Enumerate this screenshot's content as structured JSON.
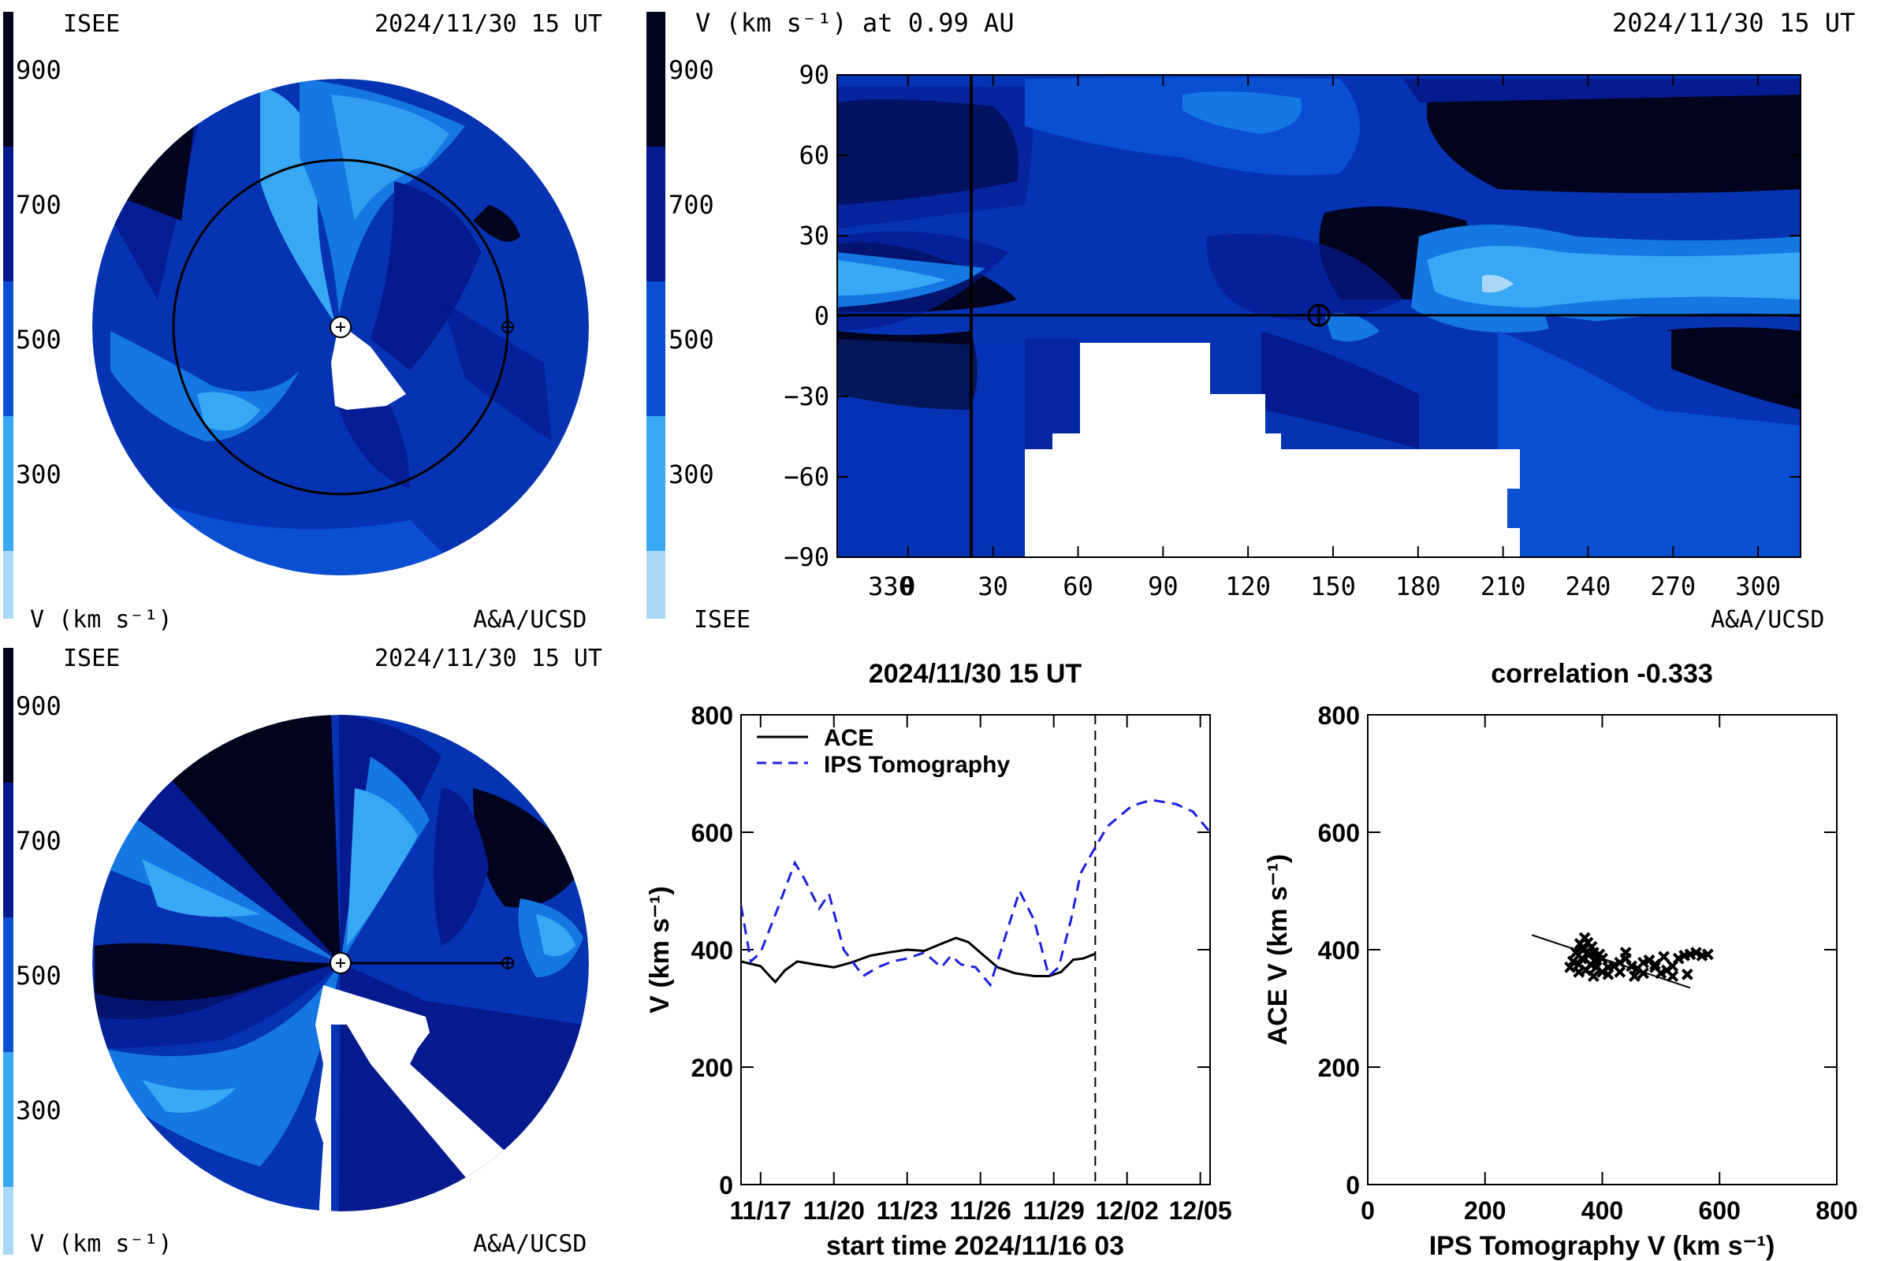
{
  "colors": {
    "levels": [
      "#a8d8f8",
      "#38a8f4",
      "#1477e4",
      "#0a4ed2",
      "#0533b4",
      "#051a8e",
      "#030a52",
      "#02041e"
    ],
    "white_gap": "#ffffff",
    "ace_line": "#000000",
    "ips_line": "#1f1fe0",
    "text": "#000000"
  },
  "colorbar": {
    "ticks": [
      "900",
      "700",
      "500",
      "300"
    ],
    "unit_label": "V (km s⁻¹)"
  },
  "panel_ecliptic": {
    "org": "ISEE",
    "timestamp": "2024/11/30 15 UT",
    "unit_label": "V (km s⁻¹)",
    "credit": "A&A/UCSD"
  },
  "panel_meridional": {
    "org": "ISEE",
    "timestamp": "2024/11/30 15 UT",
    "unit_label": "V (km s⁻¹)",
    "credit": "A&A/UCSD"
  },
  "panel_map": {
    "title": "V (km s⁻¹) at 0.99 AU",
    "timestamp": "2024/11/30 15 UT",
    "org": "ISEE",
    "credit": "A&A/UCSD",
    "x_ticks": [
      "330",
      "0",
      "30",
      "60",
      "90",
      "120",
      "150",
      "180",
      "210",
      "240",
      "270",
      "300"
    ],
    "y_ticks": [
      "90",
      "60",
      "30",
      "0",
      "−30",
      "−60",
      "−90"
    ]
  },
  "panel_timeseries": {
    "title": "2024/11/30 15 UT",
    "xlabel": "start time 2024/11/16 03",
    "ylabel": "V (km s⁻¹)",
    "legend": [
      "ACE",
      "IPS Tomography"
    ],
    "x_ticks": [
      "11/17",
      "11/20",
      "11/23",
      "11/26",
      "11/29",
      "12/02",
      "12/05"
    ],
    "y_ticks": [
      "800",
      "600",
      "400",
      "200",
      "0"
    ]
  },
  "panel_scatter": {
    "title": "correlation -0.333",
    "xlabel": "IPS Tomography V (km s⁻¹)",
    "ylabel": "ACE V (km s⁻¹)",
    "x_ticks": [
      "0",
      "200",
      "400",
      "600",
      "800"
    ],
    "y_ticks": [
      "800",
      "600",
      "400",
      "200",
      "0"
    ]
  },
  "chart_data": [
    {
      "type": "line",
      "title": "2024/11/30 15 UT",
      "xlabel": "start time 2024/11/16 03",
      "ylabel": "V (km s⁻¹)",
      "x_unit": "days after start time 2024/11/16 03",
      "xlim": [
        0,
        19.2
      ],
      "ylim": [
        0,
        800
      ],
      "legend": "top-left",
      "marker_line_x": 14.5,
      "series": [
        {
          "name": "ACE",
          "x": [
            0,
            0.8,
            1.4,
            1.8,
            2.3,
            3.0,
            3.8,
            4.5,
            5.3,
            6.0,
            6.8,
            7.5,
            8.2,
            8.8,
            9.3,
            9.8,
            10.5,
            11.2,
            12.0,
            12.6,
            13.1,
            13.6,
            14.0,
            14.5
          ],
          "y": [
            380,
            372,
            345,
            365,
            380,
            375,
            370,
            378,
            390,
            395,
            400,
            398,
            410,
            420,
            413,
            395,
            370,
            360,
            355,
            355,
            362,
            383,
            385,
            393
          ]
        },
        {
          "name": "IPS Tomography",
          "x": [
            0,
            0.4,
            0.8,
            1.5,
            2.2,
            2.6,
            3.2,
            3.6,
            4.2,
            5.0,
            5.6,
            6.2,
            6.8,
            7.5,
            8.2,
            8.6,
            9.0,
            9.6,
            10.2,
            10.8,
            11.4,
            12.0,
            12.6,
            13.0,
            13.5,
            13.9,
            14.3,
            15.0,
            16.0,
            16.8,
            17.8,
            18.5,
            19.2
          ],
          "y": [
            475,
            380,
            395,
            470,
            548,
            520,
            470,
            495,
            400,
            355,
            370,
            380,
            385,
            395,
            370,
            390,
            375,
            370,
            340,
            420,
            500,
            450,
            355,
            370,
            450,
            530,
            560,
            610,
            645,
            655,
            648,
            635,
            600
          ]
        }
      ]
    },
    {
      "type": "scatter",
      "title": "correlation -0.333",
      "xlabel": "IPS Tomography V (km s⁻¹)",
      "ylabel": "ACE V (km s⁻¹)",
      "xlim": [
        0,
        800
      ],
      "ylim": [
        0,
        800
      ],
      "points": [
        [
          345,
          370
        ],
        [
          350,
          380
        ],
        [
          355,
          395
        ],
        [
          360,
          375
        ],
        [
          362,
          410
        ],
        [
          365,
          385
        ],
        [
          368,
          400
        ],
        [
          370,
          420
        ],
        [
          372,
          365
        ],
        [
          375,
          412
        ],
        [
          378,
          392
        ],
        [
          380,
          375
        ],
        [
          382,
          405
        ],
        [
          385,
          395
        ],
        [
          388,
          380
        ],
        [
          390,
          370
        ],
        [
          395,
          392
        ],
        [
          400,
          385
        ],
        [
          410,
          370
        ],
        [
          420,
          372
        ],
        [
          430,
          378
        ],
        [
          440,
          385
        ],
        [
          450,
          372
        ],
        [
          460,
          368
        ],
        [
          470,
          378
        ],
        [
          480,
          382
        ],
        [
          490,
          370
        ],
        [
          500,
          360
        ],
        [
          510,
          365
        ],
        [
          520,
          372
        ],
        [
          530,
          385
        ],
        [
          540,
          390
        ],
        [
          550,
          392
        ],
        [
          560,
          395
        ],
        [
          570,
          390
        ],
        [
          580,
          392
        ],
        [
          400,
          362
        ],
        [
          410,
          358
        ],
        [
          430,
          362
        ],
        [
          455,
          355
        ],
        [
          470,
          360
        ],
        [
          490,
          375
        ],
        [
          520,
          355
        ],
        [
          545,
          358
        ],
        [
          360,
          362
        ],
        [
          440,
          395
        ],
        [
          505,
          388
        ],
        [
          385,
          355
        ]
      ],
      "fit": {
        "x": [
          280,
          550
        ],
        "y": [
          425,
          335
        ]
      }
    }
  ]
}
